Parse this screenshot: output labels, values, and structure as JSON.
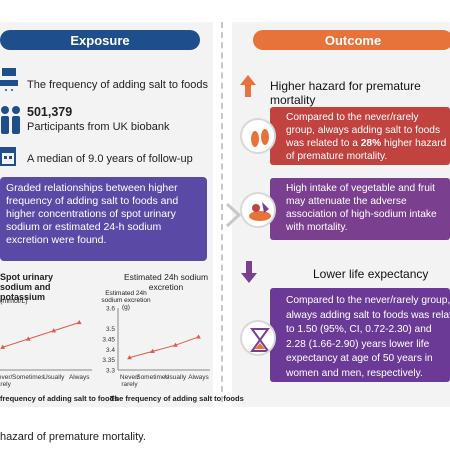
{
  "exposure": {
    "header": "Exposure",
    "items": [
      {
        "text": "The frequency of adding salt to foods"
      },
      {
        "number": "501,379",
        "text": "Participants from UK biobank"
      },
      {
        "text": "A median of 9.0 years of follow-up"
      }
    ],
    "summary_lines": [
      "Graded relationships between higher",
      "frequency of adding salt to foods and",
      "higher concentrations of spot urinary",
      "sodium or estimated 24-h sodium",
      "excretion were found."
    ]
  },
  "outcome": {
    "header": "Outcome",
    "higher_hazard_title": "Higher hazard for premature mortality",
    "card1_lines": [
      "Compared to the never/rarely",
      "group, always adding salt to foods",
      "was related to a 28% higher hazard",
      "of premature mortality."
    ],
    "card2_lines": [
      "High intake of vegetable and fruit",
      "may attenuate the adverse",
      "association of high-sodium intake",
      "with mortality."
    ],
    "lower_life_title": "Lower life expectancy",
    "card3_lines": [
      "Compared to the never/rarely group,",
      "always adding salt to foods was related",
      "to 1.50 (95%, CI, 0.72-2.30) and",
      "2.28 (1.66-2.90) years lower life",
      "expectancy at age of 50 years in",
      "women and men, respectively."
    ]
  },
  "colors": {
    "exposure_blue": "#1f4e8c",
    "outcome_orange": "#e8733a",
    "card_red": "#c0433f",
    "card_purple": "#7b3f8f",
    "series_red": "#e05a4e"
  },
  "chart_data": [
    {
      "type": "line",
      "title": "Spot urinary sodium and potassium",
      "ylabel": "(mmol/L)",
      "xlabel": "frequency of adding salt to foods",
      "categories": [
        "Never/ rarely",
        "Sometimes",
        "Usually",
        "Always"
      ],
      "series": [
        {
          "values": [
            3.36,
            3.4,
            3.44,
            3.48
          ]
        }
      ],
      "ylim": [
        3.25,
        3.55
      ]
    },
    {
      "type": "line",
      "title": "Estimated 24h sodium excretion",
      "ylabel": "Estimated 24h sodium excretion (g)",
      "xlabel": "The frequency of adding salt to foods",
      "categories": [
        "Never/ rarely",
        "Sometimes",
        "Usually",
        "Always"
      ],
      "yticks": [
        3.6,
        3.5,
        3.45,
        3.4,
        3.35,
        3.3
      ],
      "series": [
        {
          "values": [
            3.36,
            3.39,
            3.42,
            3.46
          ]
        }
      ],
      "ylim": [
        3.3,
        3.6
      ]
    }
  ],
  "caption": "hazard of premature mortality."
}
